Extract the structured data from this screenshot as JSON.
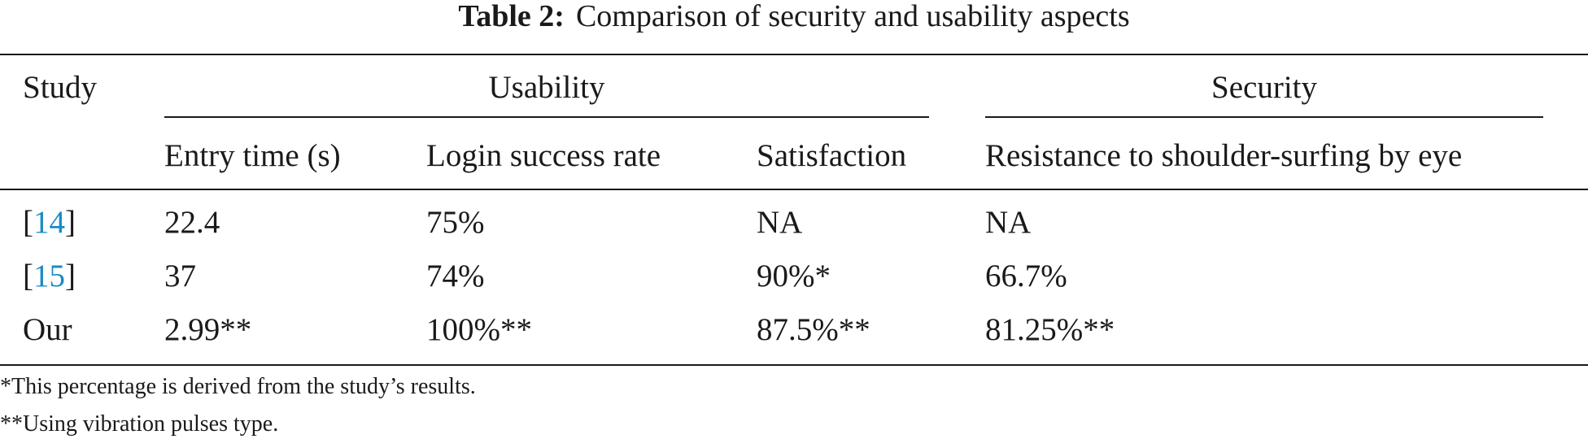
{
  "caption": {
    "label": "Table 2:",
    "text": "Comparison of security and usability aspects"
  },
  "table": {
    "header": {
      "study": "Study",
      "group_usability": "Usability",
      "group_security": "Security",
      "columns": [
        "Entry time (s)",
        "Login success rate",
        "Satisfaction",
        "Resistance to shoulder-surfing by eye"
      ]
    },
    "rows": [
      {
        "study_prefix": "[",
        "study_ref": "14",
        "study_suffix": "]",
        "cells": [
          "22.4",
          "75%",
          "NA",
          "NA"
        ]
      },
      {
        "study_prefix": "[",
        "study_ref": "15",
        "study_suffix": "]",
        "cells": [
          "37",
          "74%",
          "90%*",
          "66.7%"
        ]
      },
      {
        "study_prefix": "",
        "study_ref": "",
        "study_suffix": "",
        "study_text": "Our",
        "cells": [
          "2.99**",
          "100%**",
          "87.5%**",
          "81.25%**"
        ]
      }
    ]
  },
  "footnotes": [
    "*This percentage is derived from the study’s results.",
    "**Using vibration pulses type."
  ],
  "colors": {
    "text": "#1a1a1a",
    "reference_link": "#1a8ac4"
  }
}
